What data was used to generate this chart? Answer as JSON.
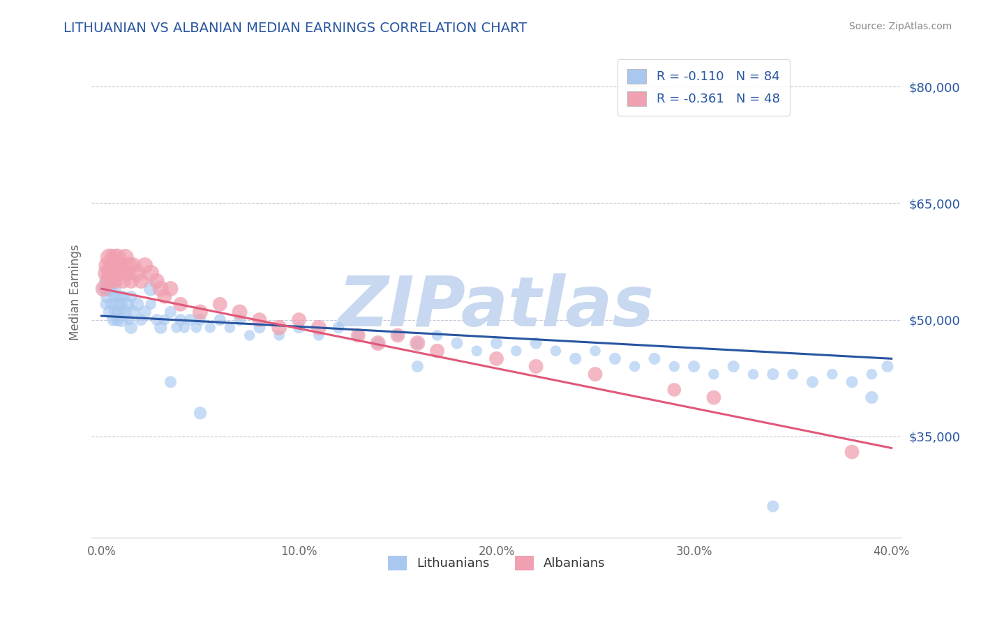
{
  "title": "LITHUANIAN VS ALBANIAN MEDIAN EARNINGS CORRELATION CHART",
  "source": "Source: ZipAtlas.com",
  "ylabel": "Median Earnings",
  "xlim": [
    -0.005,
    0.405
  ],
  "ylim": [
    22000,
    85000
  ],
  "yticks": [
    35000,
    50000,
    65000,
    80000
  ],
  "ytick_labels": [
    "$35,000",
    "$50,000",
    "$65,000",
    "$80,000"
  ],
  "xticks": [
    0.0,
    0.1,
    0.2,
    0.3,
    0.4
  ],
  "xtick_labels": [
    "0.0%",
    "10.0%",
    "20.0%",
    "30.0%",
    "40.0%"
  ],
  "legend_r1": "-0.110",
  "legend_n1": "84",
  "legend_r2": "-0.361",
  "legend_n2": "48",
  "color_blue": "#A8C8F0",
  "color_pink": "#F0A0B0",
  "color_blue_line": "#2855A0",
  "color_pink_line": "#E05878",
  "color_title": "#2855A0",
  "color_ytick_label": "#2855A0",
  "color_legend_text": "#2855A0",
  "color_grid": "#C8C8D8",
  "background_color": "#FFFFFF",
  "watermark_text": "ZIPatlas",
  "watermark_color": "#C8D8F0",
  "lit_line_x0": 0.0,
  "lit_line_y0": 50500,
  "lit_line_x1": 0.4,
  "lit_line_y1": 45000,
  "alb_line_x0": 0.0,
  "alb_line_y0": 54000,
  "alb_line_x1": 0.4,
  "alb_line_y1": 33500,
  "lit_x": [
    0.001,
    0.002,
    0.002,
    0.003,
    0.003,
    0.004,
    0.004,
    0.005,
    0.005,
    0.006,
    0.006,
    0.007,
    0.007,
    0.008,
    0.008,
    0.009,
    0.009,
    0.01,
    0.01,
    0.011,
    0.012,
    0.013,
    0.014,
    0.015,
    0.016,
    0.018,
    0.02,
    0.022,
    0.025,
    0.028,
    0.03,
    0.032,
    0.035,
    0.038,
    0.04,
    0.042,
    0.045,
    0.048,
    0.05,
    0.055,
    0.06,
    0.065,
    0.07,
    0.075,
    0.08,
    0.09,
    0.1,
    0.11,
    0.12,
    0.13,
    0.14,
    0.15,
    0.16,
    0.17,
    0.18,
    0.19,
    0.2,
    0.21,
    0.22,
    0.23,
    0.24,
    0.25,
    0.26,
    0.27,
    0.28,
    0.29,
    0.3,
    0.31,
    0.32,
    0.33,
    0.34,
    0.35,
    0.36,
    0.37,
    0.38,
    0.39,
    0.398,
    0.015,
    0.025,
    0.035,
    0.05,
    0.16,
    0.34,
    0.39
  ],
  "lit_y": [
    54000,
    55000,
    52000,
    53000,
    56000,
    51000,
    54000,
    52000,
    55000,
    50000,
    53000,
    51000,
    54000,
    52000,
    50000,
    53000,
    51000,
    52000,
    50000,
    53000,
    51000,
    52000,
    50000,
    53000,
    51000,
    52000,
    50000,
    51000,
    52000,
    50000,
    49000,
    50000,
    51000,
    49000,
    50000,
    49000,
    50000,
    49000,
    50000,
    49000,
    50000,
    49000,
    50000,
    48000,
    49000,
    48000,
    49000,
    48000,
    49000,
    48000,
    47000,
    48000,
    47000,
    48000,
    47000,
    46000,
    47000,
    46000,
    47000,
    46000,
    45000,
    46000,
    45000,
    44000,
    45000,
    44000,
    44000,
    43000,
    44000,
    43000,
    43000,
    43000,
    42000,
    43000,
    42000,
    43000,
    44000,
    49000,
    54000,
    42000,
    38000,
    44000,
    26000,
    40000
  ],
  "lit_sizes": [
    30,
    35,
    25,
    40,
    30,
    35,
    45,
    30,
    40,
    35,
    25,
    40,
    30,
    45,
    35,
    30,
    40,
    35,
    45,
    30,
    35,
    40,
    25,
    30,
    35,
    40,
    30,
    35,
    25,
    30,
    35,
    25,
    30,
    25,
    30,
    25,
    30,
    25,
    30,
    25,
    30,
    25,
    30,
    25,
    30,
    25,
    30,
    25,
    30,
    25,
    30,
    25,
    30,
    25,
    30,
    25,
    30,
    25,
    30,
    25,
    30,
    25,
    30,
    25,
    30,
    25,
    30,
    25,
    30,
    25,
    30,
    25,
    30,
    25,
    30,
    25,
    30,
    35,
    45,
    30,
    35,
    30,
    30,
    35
  ],
  "alb_x": [
    0.001,
    0.002,
    0.003,
    0.003,
    0.004,
    0.004,
    0.005,
    0.005,
    0.006,
    0.006,
    0.007,
    0.007,
    0.008,
    0.009,
    0.01,
    0.011,
    0.012,
    0.013,
    0.014,
    0.015,
    0.016,
    0.018,
    0.02,
    0.022,
    0.025,
    0.028,
    0.03,
    0.032,
    0.035,
    0.04,
    0.05,
    0.06,
    0.07,
    0.08,
    0.09,
    0.1,
    0.11,
    0.13,
    0.14,
    0.15,
    0.16,
    0.17,
    0.2,
    0.22,
    0.25,
    0.29,
    0.31,
    0.38
  ],
  "alb_y": [
    54000,
    56000,
    57000,
    55000,
    58000,
    56000,
    57000,
    55000,
    58000,
    56000,
    57000,
    55000,
    58000,
    56000,
    57000,
    55000,
    58000,
    56000,
    57000,
    55000,
    57000,
    56000,
    55000,
    57000,
    56000,
    55000,
    54000,
    53000,
    54000,
    52000,
    51000,
    52000,
    51000,
    50000,
    49000,
    50000,
    49000,
    48000,
    47000,
    48000,
    47000,
    46000,
    45000,
    44000,
    43000,
    41000,
    40000,
    33000
  ],
  "alb_sizes": [
    55,
    50,
    65,
    45,
    70,
    55,
    60,
    50,
    65,
    45,
    60,
    50,
    70,
    55,
    60,
    50,
    65,
    55,
    60,
    50,
    55,
    60,
    50,
    55,
    60,
    50,
    55,
    45,
    50,
    45,
    50,
    45,
    50,
    45,
    50,
    45,
    50,
    45,
    50,
    45,
    50,
    45,
    45,
    45,
    45,
    40,
    45,
    45
  ]
}
